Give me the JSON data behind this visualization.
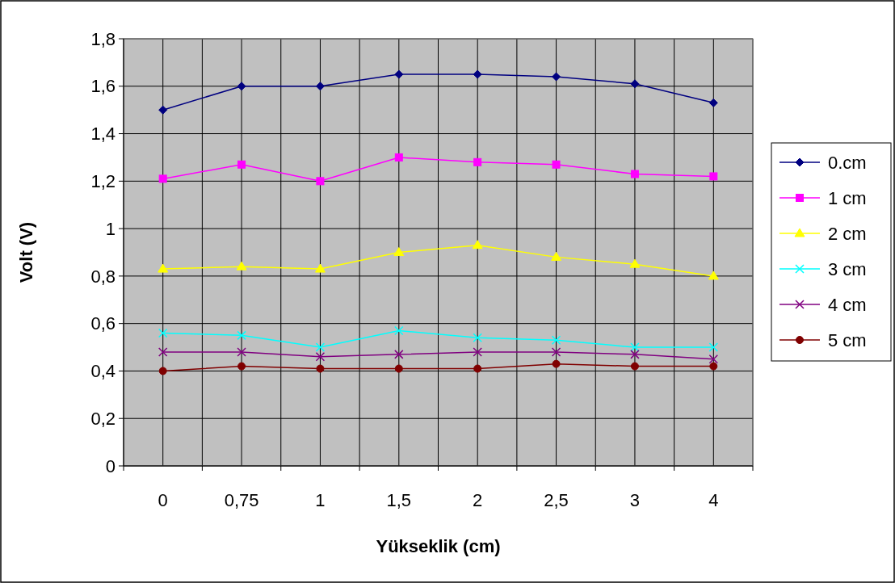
{
  "chart_data": {
    "type": "line",
    "xlabel": "Yükseklik (cm)",
    "ylabel": "Volt (V)",
    "categories": [
      "0",
      "0,75",
      "1",
      "1,5",
      "2",
      "2,5",
      "3",
      "4"
    ],
    "ylim": [
      0,
      1.8
    ],
    "yticks": [
      {
        "value": 0,
        "label": "0"
      },
      {
        "value": 0.2,
        "label": "0,2"
      },
      {
        "value": 0.4,
        "label": "0,4"
      },
      {
        "value": 0.6,
        "label": "0,6"
      },
      {
        "value": 0.8,
        "label": "0,8"
      },
      {
        "value": 1,
        "label": "1"
      },
      {
        "value": 1.2,
        "label": "1,2"
      },
      {
        "value": 1.4,
        "label": "1,4"
      },
      {
        "value": 1.6,
        "label": "1,6"
      },
      {
        "value": 1.8,
        "label": "1,8"
      }
    ],
    "grid": true,
    "legend": "right",
    "series": [
      {
        "name": "0.cm",
        "color": "#000080",
        "marker": "diamond",
        "values": [
          1.5,
          1.6,
          1.6,
          1.65,
          1.65,
          1.64,
          1.61,
          1.53
        ]
      },
      {
        "name": "1 cm",
        "color": "#ff00ff",
        "marker": "square",
        "values": [
          1.21,
          1.27,
          1.2,
          1.3,
          1.28,
          1.27,
          1.23,
          1.22
        ]
      },
      {
        "name": "2 cm",
        "color": "#ffff00",
        "marker": "triangle",
        "values": [
          0.83,
          0.84,
          0.83,
          0.9,
          0.93,
          0.88,
          0.85,
          0.8
        ]
      },
      {
        "name": "3 cm",
        "color": "#00ffff",
        "marker": "cross",
        "values": [
          0.56,
          0.55,
          0.5,
          0.57,
          0.54,
          0.53,
          0.5,
          0.5
        ]
      },
      {
        "name": "4 cm",
        "color": "#800080",
        "marker": "cross",
        "values": [
          0.48,
          0.48,
          0.46,
          0.47,
          0.48,
          0.48,
          0.47,
          0.45
        ]
      },
      {
        "name": "5 cm",
        "color": "#800000",
        "marker": "circle",
        "values": [
          0.4,
          0.42,
          0.41,
          0.41,
          0.41,
          0.43,
          0.42,
          0.42
        ]
      }
    ]
  }
}
